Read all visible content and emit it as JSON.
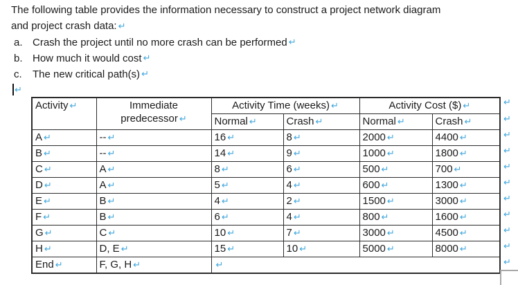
{
  "document": {
    "intro_line1": "The following table provides the information necessary to construct a project network diagram",
    "intro_line2": "and project crash data:",
    "list_items": [
      {
        "marker": "a.",
        "text": "Crash the project until no more crash can be performed"
      },
      {
        "marker": "b.",
        "text": "How much it would cost"
      },
      {
        "marker": "c.",
        "text": "The new critical path(s)"
      }
    ]
  },
  "marks": {
    "return_mark": "↵",
    "color": "#3ea6dc"
  },
  "table": {
    "header": {
      "activity": "Activity",
      "immediate_line1": "Immediate",
      "immediate_line2": "predecessor",
      "activity_time": "Activity Time (weeks)",
      "activity_cost": "Activity Cost ($)",
      "normal": "Normal",
      "crash": "Crash"
    },
    "rows": [
      {
        "activity": "A",
        "predecessor": "--",
        "normal_time": "16",
        "crash_time": "8",
        "normal_cost": "2000",
        "crash_cost": "4400"
      },
      {
        "activity": "B",
        "predecessor": "--",
        "normal_time": "14",
        "crash_time": "9",
        "normal_cost": "1000",
        "crash_cost": "1800"
      },
      {
        "activity": "C",
        "predecessor": "A",
        "normal_time": "8",
        "crash_time": "6",
        "normal_cost": "500",
        "crash_cost": "700"
      },
      {
        "activity": "D",
        "predecessor": "A",
        "normal_time": "5",
        "crash_time": "4",
        "normal_cost": "600",
        "crash_cost": "1300"
      },
      {
        "activity": "E",
        "predecessor": "B",
        "normal_time": "4",
        "crash_time": "2",
        "normal_cost": "1500",
        "crash_cost": "3000"
      },
      {
        "activity": "F",
        "predecessor": "B",
        "normal_time": "6",
        "crash_time": "4",
        "normal_cost": "800",
        "crash_cost": "1600"
      },
      {
        "activity": "G",
        "predecessor": "C",
        "normal_time": "10",
        "crash_time": "7",
        "normal_cost": "3000",
        "crash_cost": "4500"
      },
      {
        "activity": "H",
        "predecessor": "D, E",
        "normal_time": "15",
        "crash_time": "10",
        "normal_cost": "5000",
        "crash_cost": "8000"
      },
      {
        "activity": "End",
        "predecessor": "F, G, H",
        "merged": true
      }
    ]
  }
}
